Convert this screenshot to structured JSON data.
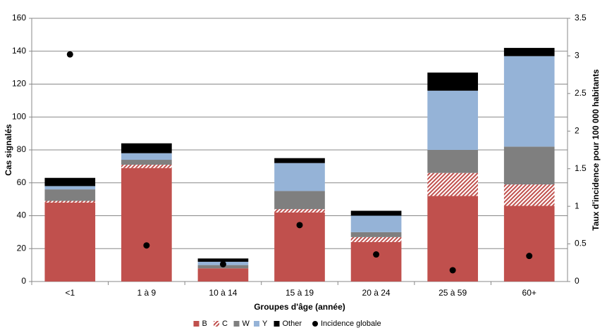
{
  "chart_data": {
    "type": "bar",
    "stacked": true,
    "xlabel": "Groupes d'âge (année)",
    "ylabel": "Cas signalés",
    "y2label": "Taux d'incidence pour 100 000 habitants",
    "categories": [
      "<1",
      "1 à 9",
      "10 à 14",
      "15 à 19",
      "20 à 24",
      "25 à 59",
      "60+"
    ],
    "series": [
      {
        "name": "B",
        "color": "#c0504d",
        "values": [
          48,
          69,
          8,
          42,
          24,
          52,
          46
        ]
      },
      {
        "name": "C",
        "color": "#c0504d",
        "hatch": true,
        "values": [
          1,
          2,
          0,
          2,
          3,
          14,
          13
        ]
      },
      {
        "name": "W",
        "color": "#7f7f7f",
        "values": [
          7,
          3,
          2,
          11,
          3,
          14,
          23
        ]
      },
      {
        "name": "Y",
        "color": "#95b3d7",
        "values": [
          2,
          4,
          2,
          17,
          10,
          36,
          55
        ]
      },
      {
        "name": "Other",
        "color": "#000000",
        "values": [
          5,
          6,
          2,
          3,
          3,
          11,
          5
        ]
      },
      {
        "name": "Incidence globale",
        "type": "scatter",
        "axis": "y2",
        "color": "#000000",
        "values": [
          3.02,
          0.48,
          0.23,
          0.75,
          0.36,
          0.15,
          0.34
        ]
      }
    ],
    "ylim": [
      0,
      160
    ],
    "yticks": [
      0,
      20,
      40,
      60,
      80,
      100,
      120,
      140,
      160
    ],
    "y2lim": [
      0,
      3.5
    ],
    "y2ticks": [
      0,
      0.5,
      1,
      1.5,
      2,
      2.5,
      3,
      3.5
    ],
    "grid": true,
    "legend": "bottom"
  }
}
